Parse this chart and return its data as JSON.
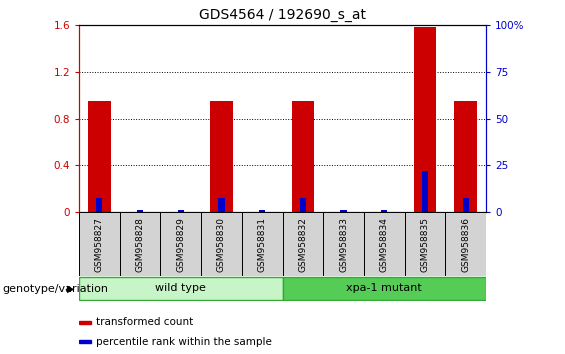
{
  "title": "GDS4564 / 192690_s_at",
  "samples": [
    "GSM958827",
    "GSM958828",
    "GSM958829",
    "GSM958830",
    "GSM958831",
    "GSM958832",
    "GSM958833",
    "GSM958834",
    "GSM958835",
    "GSM958836"
  ],
  "red_values": [
    0.95,
    0.0,
    0.0,
    0.95,
    0.0,
    0.95,
    0.0,
    0.0,
    1.58,
    0.95
  ],
  "blue_values_pct": [
    7.5,
    1.5,
    1.5,
    7.5,
    1.5,
    7.5,
    1.5,
    1.5,
    22.0,
    7.5
  ],
  "ylim_left": [
    0,
    1.6
  ],
  "ylim_right": [
    0,
    100
  ],
  "yticks_left": [
    0,
    0.4,
    0.8,
    1.2,
    1.6
  ],
  "yticks_right": [
    0,
    25,
    50,
    75,
    100
  ],
  "ytick_labels_left": [
    "0",
    "0.4",
    "0.8",
    "1.2",
    "1.6"
  ],
  "ytick_labels_right": [
    "0",
    "25",
    "50",
    "75",
    "100%"
  ],
  "groups": [
    {
      "label": "wild type",
      "start": 0,
      "end": 5,
      "color": "#c8f5c8"
    },
    {
      "label": "xpa-1 mutant",
      "start": 5,
      "end": 10,
      "color": "#55cc55"
    }
  ],
  "group_row_label": "genotype/variation",
  "legend_items": [
    {
      "color": "#cc0000",
      "label": "transformed count"
    },
    {
      "color": "#0000cc",
      "label": "percentile rank within the sample"
    }
  ],
  "red_bar_width": 0.55,
  "blue_bar_width": 0.15,
  "red_color": "#cc0000",
  "blue_color": "#0000cc",
  "grid_color": "black",
  "background_color": "#ffffff",
  "tick_area_color": "#d3d3d3",
  "title_fontsize": 10,
  "tick_fontsize": 7.5,
  "sample_fontsize": 6.5,
  "group_fontsize": 8,
  "legend_fontsize": 7.5
}
